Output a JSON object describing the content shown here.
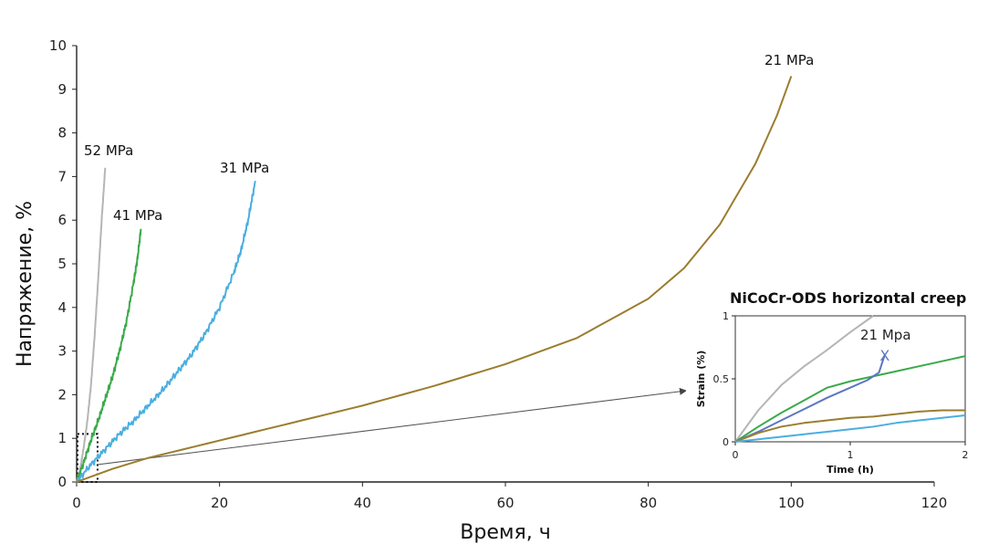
{
  "colors": {
    "s52": "#b5b5b5",
    "s41": "#3aaa4a",
    "s31": "#4aaee0",
    "s21": "#9b7d2e",
    "inset_blue": "#5b76c4",
    "axis": "#222222",
    "arrow": "#666666"
  },
  "chart_data": [
    {
      "type": "line",
      "title": "",
      "xlabel": "Время, ч",
      "ylabel": "Напряжение, %",
      "xlim": [
        0,
        120
      ],
      "ylim": [
        0,
        10
      ],
      "xticks": [
        "0",
        "20",
        "40",
        "60",
        "80",
        "100",
        "120"
      ],
      "yticks": [
        "0",
        "1",
        "2",
        "3",
        "4",
        "5",
        "6",
        "7",
        "8",
        "9",
        "10"
      ],
      "grid": false,
      "series": [
        {
          "name": "52 MPa",
          "label": "52 MPa",
          "color_key": "s52",
          "noise": 0.02,
          "x": [
            0,
            0.5,
            1,
            1.5,
            2,
            2.5,
            3,
            3.5,
            4
          ],
          "y": [
            0,
            0.3,
            0.8,
            1.4,
            2.2,
            3.3,
            4.6,
            6.0,
            7.2
          ]
        },
        {
          "name": "41 MPa",
          "label": "41 MPa",
          "color_key": "s41",
          "noise": 0.05,
          "x": [
            0,
            1,
            2,
            3,
            4,
            5,
            6,
            7,
            8,
            8.5,
            9
          ],
          "y": [
            0,
            0.45,
            0.95,
            1.4,
            1.9,
            2.4,
            3.0,
            3.7,
            4.6,
            5.1,
            5.8
          ]
        },
        {
          "name": "31 MPa",
          "label": "31 MPa",
          "color_key": "s31",
          "noise": 0.05,
          "x": [
            0,
            2,
            4,
            6,
            8,
            10,
            12,
            14,
            16,
            18,
            20,
            22,
            23,
            24,
            25
          ],
          "y": [
            0,
            0.4,
            0.75,
            1.1,
            1.4,
            1.75,
            2.1,
            2.5,
            2.9,
            3.4,
            4.0,
            4.8,
            5.3,
            6.0,
            6.9
          ]
        },
        {
          "name": "21 MPa",
          "label": "21 MPa",
          "color_key": "s21",
          "noise": 0.0,
          "x": [
            0,
            5,
            10,
            20,
            30,
            40,
            50,
            60,
            70,
            80,
            85,
            90,
            95,
            98,
            100
          ],
          "y": [
            0,
            0.3,
            0.55,
            0.95,
            1.35,
            1.75,
            2.2,
            2.7,
            3.3,
            4.2,
            4.9,
            5.9,
            7.3,
            8.4,
            9.3
          ]
        }
      ],
      "annotations": [
        {
          "type": "dashed-box",
          "x_range": [
            0,
            2.8
          ],
          "y_range": [
            0,
            1.1
          ]
        },
        {
          "type": "arrow",
          "from_x": 3,
          "from_y": 0.4,
          "target": "inset"
        }
      ]
    },
    {
      "type": "line",
      "title": "NiCoCr-ODS horizontal creep",
      "xlabel": "Time (h)",
      "ylabel": "Strain (%)",
      "xlim": [
        0,
        2
      ],
      "ylim": [
        0,
        1
      ],
      "xticks": [
        "0",
        "1",
        "2"
      ],
      "yticks": [
        "0",
        "0.5",
        "1"
      ],
      "grid": false,
      "note": "21 Mpa",
      "series": [
        {
          "name": "52 MPa",
          "color_key": "s52",
          "x": [
            0,
            0.2,
            0.4,
            0.6,
            0.8,
            1.0,
            1.2
          ],
          "y": [
            0,
            0.25,
            0.45,
            0.6,
            0.73,
            0.87,
            1.0
          ]
        },
        {
          "name": "41 MPa",
          "color_key": "s41",
          "x": [
            0,
            0.2,
            0.4,
            0.6,
            0.8,
            1.0,
            1.2,
            1.4,
            1.6,
            1.8,
            2.0
          ],
          "y": [
            0,
            0.12,
            0.23,
            0.33,
            0.43,
            0.48,
            0.52,
            0.56,
            0.6,
            0.64,
            0.68
          ]
        },
        {
          "name": "21 Mpa",
          "color_key": "inset_blue",
          "end_marker": "X",
          "x": [
            0,
            0.2,
            0.4,
            0.6,
            0.8,
            1.0,
            1.15,
            1.25,
            1.3
          ],
          "y": [
            0,
            0.08,
            0.17,
            0.26,
            0.35,
            0.43,
            0.49,
            0.55,
            0.69
          ]
        },
        {
          "name": "21 MPa",
          "color_key": "s21",
          "x": [
            0,
            0.2,
            0.4,
            0.6,
            0.8,
            1.0,
            1.2,
            1.4,
            1.6,
            1.8,
            2.0
          ],
          "y": [
            0,
            0.07,
            0.12,
            0.15,
            0.17,
            0.19,
            0.2,
            0.22,
            0.24,
            0.25,
            0.25
          ]
        },
        {
          "name": "31 MPa",
          "color_key": "s31",
          "x": [
            0,
            0.2,
            0.4,
            0.6,
            0.8,
            1.0,
            1.2,
            1.4,
            1.6,
            1.8,
            2.0
          ],
          "y": [
            0,
            0.02,
            0.04,
            0.06,
            0.08,
            0.1,
            0.12,
            0.15,
            0.17,
            0.19,
            0.21
          ]
        }
      ]
    }
  ]
}
